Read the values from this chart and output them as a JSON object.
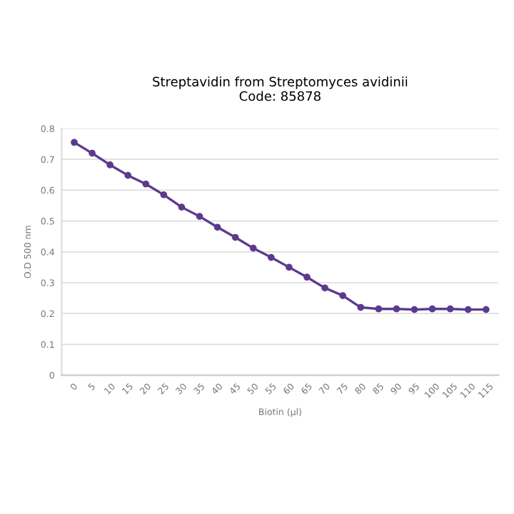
{
  "chart_data": {
    "type": "line",
    "title": "Streptavidin from Streptomyces avidinii\nCode: 85878",
    "xlabel": "Biotin (µl)",
    "ylabel": "O.D 500 nm",
    "categories": [
      "0",
      "5",
      "10",
      "15",
      "20",
      "25",
      "30",
      "35",
      "40",
      "45",
      "50",
      "55",
      "60",
      "65",
      "70",
      "75",
      "80",
      "85",
      "90",
      "95",
      "100",
      "105",
      "110",
      "115"
    ],
    "series": [
      {
        "color": "#5c3a8e",
        "values": [
          0.755,
          0.72,
          0.682,
          0.648,
          0.62,
          0.585,
          0.545,
          0.515,
          0.48,
          0.447,
          0.412,
          0.382,
          0.35,
          0.318,
          0.283,
          0.258,
          0.22,
          0.215,
          0.215,
          0.213,
          0.215,
          0.215,
          0.213,
          0.213
        ]
      }
    ],
    "ylim": [
      0,
      0.8
    ],
    "yticks": [
      0,
      0.1,
      0.2,
      0.3,
      0.4,
      0.5,
      0.6,
      0.7,
      0.8
    ],
    "grid": "y",
    "marker": "circle",
    "line_style": "solid",
    "legend": false
  }
}
